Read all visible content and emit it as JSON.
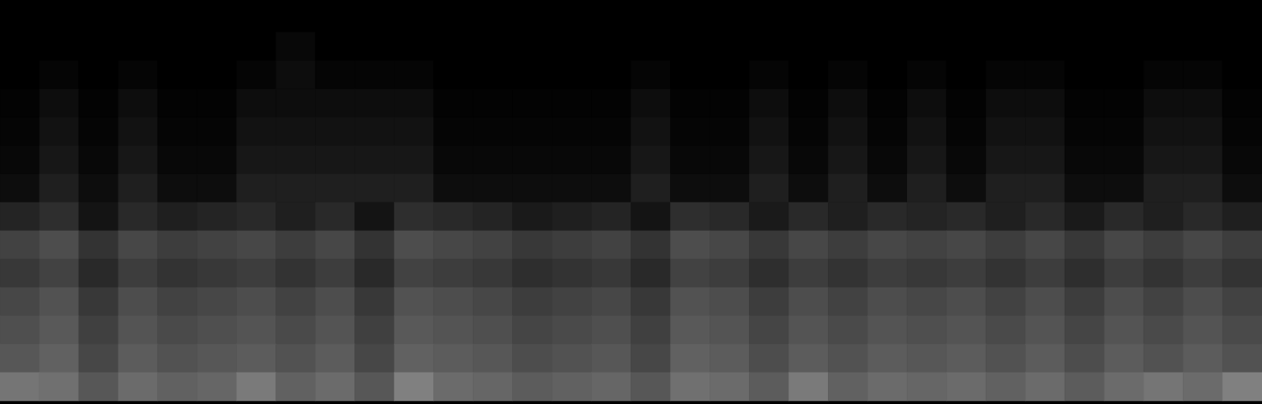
{
  "chart_data": {
    "type": "heatmap",
    "tick_labels": false,
    "zlim": [
      0,
      1
    ],
    "cells": [
      [
        0,
        0,
        0,
        0,
        0,
        0,
        0,
        0,
        0,
        0,
        0,
        0,
        0,
        0,
        0,
        0,
        0,
        0,
        0,
        0,
        0,
        0,
        0,
        0,
        0,
        0,
        0,
        0,
        0,
        0,
        0,
        0
      ],
      [
        0,
        0,
        0,
        0,
        0,
        0,
        0,
        0.03,
        0,
        0,
        0,
        0,
        0,
        0,
        0,
        0,
        0,
        0,
        0,
        0,
        0,
        0,
        0,
        0,
        0,
        0,
        0,
        0,
        0,
        0,
        0,
        0
      ],
      [
        0,
        0.02,
        0,
        0.02,
        0,
        0,
        0.02,
        0.05,
        0.02,
        0.02,
        0.02,
        0,
        0,
        0,
        0,
        0,
        0.02,
        0,
        0,
        0.02,
        0,
        0.02,
        0,
        0.02,
        0,
        0.02,
        0.02,
        0,
        0,
        0.02,
        0.02,
        0
      ],
      [
        0.01,
        0.05,
        0.01,
        0.05,
        0.01,
        0.01,
        0.05,
        0.05,
        0.05,
        0.05,
        0.05,
        0.01,
        0.01,
        0.01,
        0.01,
        0.01,
        0.05,
        0.01,
        0.01,
        0.05,
        0.01,
        0.05,
        0.01,
        0.05,
        0.01,
        0.05,
        0.05,
        0.01,
        0.01,
        0.05,
        0.05,
        0.01
      ],
      [
        0.02,
        0.07,
        0.02,
        0.07,
        0.02,
        0.02,
        0.07,
        0.07,
        0.07,
        0.07,
        0.07,
        0.02,
        0.02,
        0.02,
        0.02,
        0.02,
        0.07,
        0.02,
        0.02,
        0.07,
        0.02,
        0.07,
        0.02,
        0.07,
        0.02,
        0.07,
        0.07,
        0.02,
        0.02,
        0.07,
        0.07,
        0.02
      ],
      [
        0.03,
        0.09,
        0.03,
        0.09,
        0.03,
        0.03,
        0.09,
        0.09,
        0.09,
        0.09,
        0.09,
        0.03,
        0.03,
        0.03,
        0.03,
        0.03,
        0.09,
        0.03,
        0.03,
        0.09,
        0.03,
        0.09,
        0.03,
        0.09,
        0.03,
        0.09,
        0.09,
        0.03,
        0.03,
        0.09,
        0.09,
        0.03
      ],
      [
        0.05,
        0.12,
        0.05,
        0.12,
        0.05,
        0.05,
        0.12,
        0.12,
        0.12,
        0.12,
        0.12,
        0.05,
        0.05,
        0.05,
        0.05,
        0.05,
        0.12,
        0.05,
        0.05,
        0.12,
        0.05,
        0.12,
        0.05,
        0.12,
        0.05,
        0.12,
        0.12,
        0.05,
        0.05,
        0.12,
        0.12,
        0.05
      ],
      [
        0.14,
        0.18,
        0.08,
        0.16,
        0.12,
        0.14,
        0.16,
        0.12,
        0.16,
        0.08,
        0.18,
        0.16,
        0.14,
        0.1,
        0.12,
        0.14,
        0.08,
        0.18,
        0.16,
        0.1,
        0.16,
        0.12,
        0.16,
        0.14,
        0.16,
        0.12,
        0.16,
        0.1,
        0.16,
        0.12,
        0.16,
        0.12
      ],
      [
        0.26,
        0.3,
        0.2,
        0.28,
        0.24,
        0.26,
        0.28,
        0.24,
        0.28,
        0.2,
        0.3,
        0.28,
        0.26,
        0.22,
        0.24,
        0.26,
        0.2,
        0.3,
        0.28,
        0.22,
        0.28,
        0.24,
        0.28,
        0.26,
        0.28,
        0.24,
        0.28,
        0.22,
        0.28,
        0.24,
        0.28,
        0.24
      ],
      [
        0.22,
        0.26,
        0.16,
        0.24,
        0.2,
        0.22,
        0.24,
        0.2,
        0.24,
        0.16,
        0.26,
        0.24,
        0.22,
        0.18,
        0.2,
        0.22,
        0.16,
        0.26,
        0.24,
        0.18,
        0.24,
        0.2,
        0.24,
        0.22,
        0.24,
        0.2,
        0.24,
        0.18,
        0.24,
        0.2,
        0.24,
        0.2
      ],
      [
        0.28,
        0.32,
        0.22,
        0.3,
        0.26,
        0.28,
        0.3,
        0.26,
        0.3,
        0.22,
        0.32,
        0.3,
        0.28,
        0.24,
        0.26,
        0.28,
        0.22,
        0.32,
        0.3,
        0.24,
        0.3,
        0.26,
        0.3,
        0.28,
        0.3,
        0.26,
        0.3,
        0.24,
        0.3,
        0.26,
        0.3,
        0.26
      ],
      [
        0.31,
        0.35,
        0.25,
        0.33,
        0.29,
        0.31,
        0.33,
        0.29,
        0.33,
        0.25,
        0.35,
        0.33,
        0.31,
        0.27,
        0.29,
        0.31,
        0.25,
        0.35,
        0.33,
        0.27,
        0.33,
        0.29,
        0.33,
        0.31,
        0.33,
        0.29,
        0.33,
        0.27,
        0.33,
        0.29,
        0.33,
        0.29
      ],
      [
        0.34,
        0.38,
        0.28,
        0.36,
        0.32,
        0.34,
        0.36,
        0.32,
        0.36,
        0.28,
        0.38,
        0.36,
        0.34,
        0.3,
        0.32,
        0.34,
        0.28,
        0.38,
        0.36,
        0.3,
        0.36,
        0.32,
        0.36,
        0.34,
        0.36,
        0.32,
        0.36,
        0.3,
        0.36,
        0.32,
        0.36,
        0.32
      ],
      [
        0.46,
        0.44,
        0.34,
        0.42,
        0.38,
        0.4,
        0.48,
        0.38,
        0.42,
        0.34,
        0.5,
        0.42,
        0.4,
        0.36,
        0.38,
        0.4,
        0.34,
        0.44,
        0.42,
        0.36,
        0.48,
        0.38,
        0.42,
        0.4,
        0.42,
        0.38,
        0.42,
        0.36,
        0.42,
        0.46,
        0.42,
        0.5
      ]
    ]
  }
}
